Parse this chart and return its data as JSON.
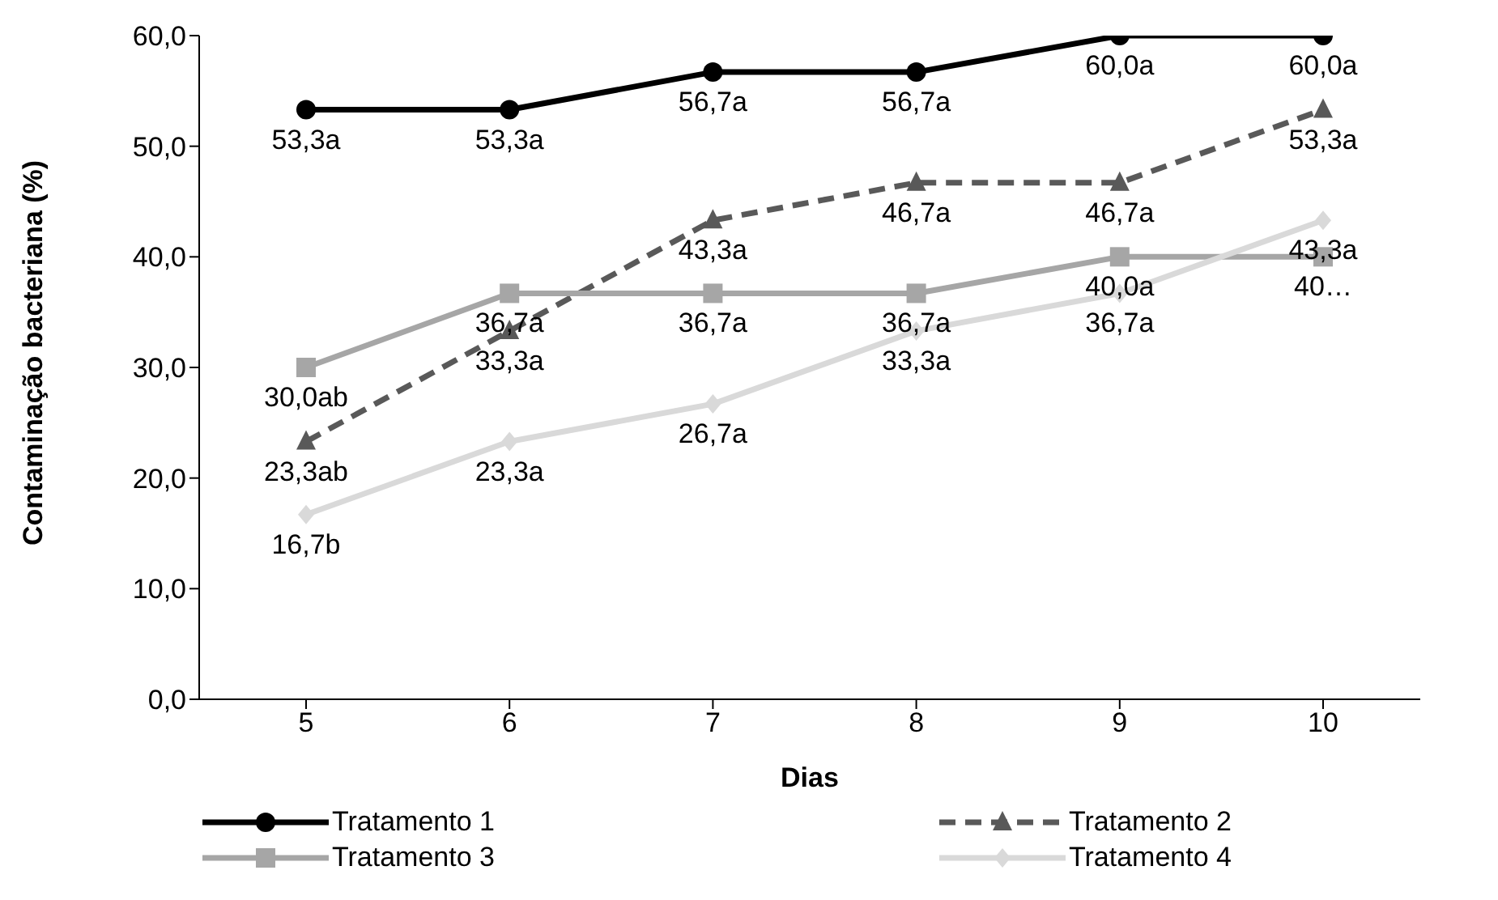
{
  "chart_data": {
    "type": "line",
    "xlabel": "Dias",
    "ylabel": "Contaminação bacteriana (%)",
    "categories": [
      "5",
      "6",
      "7",
      "8",
      "9",
      "10"
    ],
    "ylim": [
      0,
      60
    ],
    "yticks": [
      {
        "value": 0,
        "label": "0,0"
      },
      {
        "value": 10,
        "label": "10,0"
      },
      {
        "value": 20,
        "label": "20,0"
      },
      {
        "value": 30,
        "label": "30,0"
      },
      {
        "value": 40,
        "label": "40,0"
      },
      {
        "value": 50,
        "label": "50,0"
      },
      {
        "value": 60,
        "label": "60,0"
      }
    ],
    "grid": false,
    "legend": "bottom",
    "series": [
      {
        "name": "Tratamento 1",
        "color": "#000000",
        "marker": "circle",
        "line_style": "solid",
        "values": [
          53.3,
          53.3,
          56.7,
          56.7,
          60.0,
          60.0
        ],
        "value_labels": [
          "53,3a",
          "53,3a",
          "56,7a",
          "56,7a",
          "60,0a",
          "60,0a"
        ]
      },
      {
        "name": "Tratamento 2",
        "color": "#595959",
        "marker": "triangle",
        "line_style": "dashed",
        "values": [
          23.3,
          33.3,
          43.3,
          46.7,
          46.7,
          53.3
        ],
        "value_labels": [
          "23,3ab",
          "33,3a",
          "43,3a",
          "46,7a",
          "46,7a",
          "53,3a"
        ]
      },
      {
        "name": "Tratamento 3",
        "color": "#a6a6a6",
        "marker": "square",
        "line_style": "solid",
        "values": [
          30.0,
          36.7,
          36.7,
          36.7,
          40.0,
          40.0
        ],
        "value_labels": [
          "30,0ab",
          "36,7a",
          "36,7a",
          "36,7a",
          "40,0a",
          "40…"
        ]
      },
      {
        "name": "Tratamento 4",
        "color": "#d9d9d9",
        "marker": "diamond",
        "line_style": "solid",
        "values": [
          16.7,
          23.3,
          26.7,
          33.3,
          36.7,
          43.3
        ],
        "value_labels": [
          "16,7b",
          "23,3a",
          "26,7a",
          "33,3a",
          "36,7a",
          "43,3a"
        ]
      }
    ]
  }
}
